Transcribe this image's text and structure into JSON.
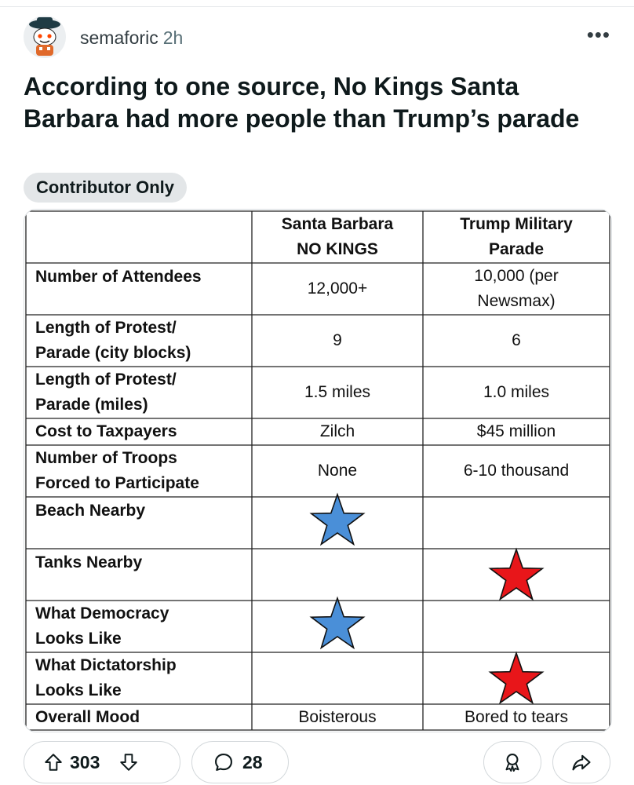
{
  "post": {
    "author": "semaforic",
    "age": "2h",
    "title": "According to one source, No Kings Santa Barbara had more people than Trump’s parade",
    "flair": "Contributor Only"
  },
  "table": {
    "headers": [
      "",
      "Santa Barbara NO KINGS",
      "Trump Military Parade"
    ],
    "header_lines": {
      "sb": [
        "Santa Barbara",
        "NO KINGS"
      ],
      "trump": [
        "Trump Military",
        "Parade"
      ]
    },
    "rows": [
      {
        "label": [
          "Number of Attendees"
        ],
        "sb": [
          "12,000+"
        ],
        "trump": [
          "10,000 (per",
          "Newsmax)"
        ]
      },
      {
        "label": [
          "Length of Protest/",
          "Parade (city blocks)"
        ],
        "sb": [
          "9"
        ],
        "trump": [
          "6"
        ]
      },
      {
        "label": [
          "Length of Protest/",
          "Parade (miles)"
        ],
        "sb": [
          "1.5 miles"
        ],
        "trump": [
          "1.0 miles"
        ]
      },
      {
        "label": [
          "Cost to Taxpayers"
        ],
        "sb": [
          "Zilch"
        ],
        "trump": [
          "$45 million"
        ]
      },
      {
        "label": [
          "Number of Troops",
          "Forced to Participate"
        ],
        "sb": [
          "None"
        ],
        "trump": [
          "6-10 thousand"
        ]
      },
      {
        "label": [
          "Beach Nearby"
        ],
        "sb_star": "blue"
      },
      {
        "label": [
          "Tanks Nearby"
        ],
        "trump_star": "red"
      },
      {
        "label": [
          "What Democracy",
          "Looks Like"
        ],
        "sb_star": "blue"
      },
      {
        "label": [
          "What Dictatorship",
          "Looks Like"
        ],
        "trump_star": "red"
      },
      {
        "label": [
          "Overall Mood"
        ],
        "sb": [
          "Boisterous"
        ],
        "trump": [
          "Bored to tears"
        ]
      }
    ],
    "star_colors": {
      "blue": "#4a8fd8",
      "red": "#e8161a"
    }
  },
  "actions": {
    "upvotes": "303",
    "comments": "28"
  },
  "icons": [
    "avatar",
    "more-icon",
    "upvote-icon",
    "downvote-icon",
    "comment-icon",
    "award-icon",
    "share-icon"
  ]
}
